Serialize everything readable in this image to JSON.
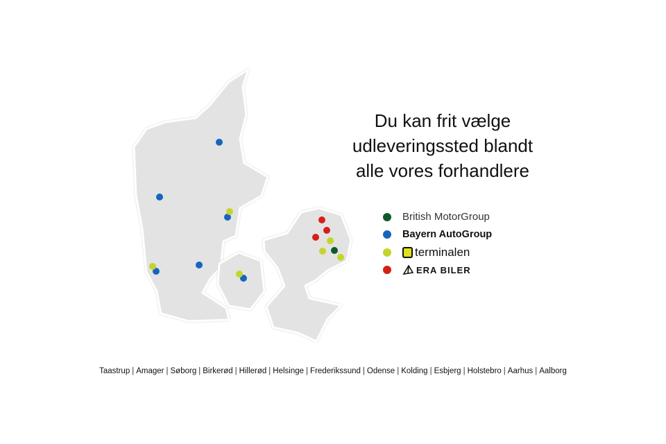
{
  "headline": [
    "Du kan frit vælge",
    "udleveringssted blandt",
    "alle vores forhandlere"
  ],
  "legend": [
    {
      "label": "British MotorGroup",
      "color": "#0f5a2c"
    },
    {
      "label": "Bayern AutoGroup",
      "color": "#1565c0"
    },
    {
      "label": "terminalen",
      "color": "#c4d52a"
    },
    {
      "label": "ERA BILER",
      "color": "#d32118"
    }
  ],
  "locations": {
    "british": [
      [
        482,
        361
      ]
    ],
    "bayern": [
      [
        316,
        205
      ],
      [
        230,
        284
      ],
      [
        328,
        313
      ],
      [
        287,
        382
      ],
      [
        225,
        391
      ],
      [
        351,
        401
      ]
    ],
    "terminalen": [
      [
        331,
        305
      ],
      [
        220,
        384
      ],
      [
        345,
        395
      ],
      [
        476,
        347
      ],
      [
        465,
        362
      ],
      [
        491,
        371
      ]
    ],
    "era": [
      [
        464,
        317
      ],
      [
        471,
        332
      ],
      [
        455,
        342
      ]
    ]
  },
  "cities": [
    "Taastrup",
    "Amager",
    "Søborg",
    "Birkerød",
    "Hillerød",
    "Helsinge",
    "Frederikssund",
    "Odense",
    "Kolding",
    "Esbjerg",
    "Holstebro",
    "Aarhus",
    "Aalborg"
  ]
}
